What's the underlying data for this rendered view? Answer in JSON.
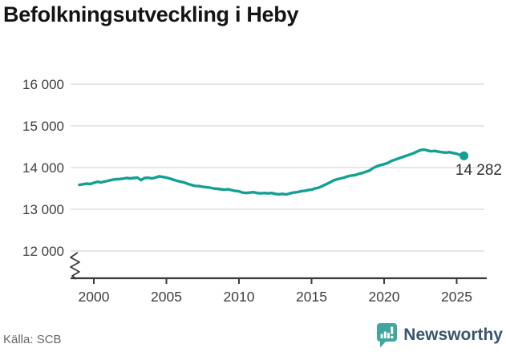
{
  "title": "Befolkningsutveckling i Heby",
  "source": "Källa: SCB",
  "branding": {
    "name": "Newsworthy",
    "icon": "newsworthy-chart-bubble-icon",
    "icon_color": "#3fa7a0",
    "text_color": "#3a556c"
  },
  "colors": {
    "line": "#12a092",
    "grid": "#e2e2e2",
    "axis": "#3a3a3a",
    "tick_label": "#3e3e3e",
    "annotation": "#2f2f2f"
  },
  "chart_data": {
    "type": "line",
    "title": "Befolkningsutveckling i Heby",
    "xlabel": "",
    "ylabel": "",
    "x_ticks": [
      2000,
      2005,
      2010,
      2015,
      2020,
      2025
    ],
    "y_ticks": [
      16000,
      15000,
      14000,
      13000,
      12000
    ],
    "y_tick_labels": [
      "16 000",
      "15 000",
      "14 000",
      "13 000",
      "12 000"
    ],
    "xlim": [
      1998.4,
      2027.2
    ],
    "ylim": [
      11600,
      16200
    ],
    "grid": "horizontal",
    "axis_break": true,
    "legend": "none",
    "end_label": "14 282",
    "end_value": 14282,
    "series": [
      {
        "name": "Befolkning",
        "x": [
          1999.0,
          1999.25,
          1999.5,
          1999.75,
          2000.0,
          2000.25,
          2000.5,
          2000.75,
          2001.0,
          2001.25,
          2001.5,
          2001.75,
          2002.0,
          2002.25,
          2002.5,
          2002.75,
          2003.0,
          2003.25,
          2003.5,
          2003.75,
          2004.0,
          2004.25,
          2004.5,
          2004.75,
          2005.0,
          2005.25,
          2005.5,
          2005.75,
          2006.0,
          2006.25,
          2006.5,
          2006.75,
          2007.0,
          2007.25,
          2007.5,
          2007.75,
          2008.0,
          2008.25,
          2008.5,
          2008.75,
          2009.0,
          2009.25,
          2009.5,
          2009.75,
          2010.0,
          2010.25,
          2010.5,
          2010.75,
          2011.0,
          2011.25,
          2011.5,
          2011.75,
          2012.0,
          2012.25,
          2012.5,
          2012.75,
          2013.0,
          2013.25,
          2013.5,
          2013.75,
          2014.0,
          2014.25,
          2014.5,
          2014.75,
          2015.0,
          2015.25,
          2015.5,
          2015.75,
          2016.0,
          2016.25,
          2016.5,
          2016.75,
          2017.0,
          2017.25,
          2017.5,
          2017.75,
          2018.0,
          2018.25,
          2018.5,
          2018.75,
          2019.0,
          2019.25,
          2019.5,
          2019.75,
          2020.0,
          2020.25,
          2020.5,
          2020.75,
          2021.0,
          2021.25,
          2021.5,
          2021.75,
          2022.0,
          2022.25,
          2022.5,
          2022.75,
          2023.0,
          2023.25,
          2023.5,
          2023.75,
          2024.0,
          2024.25,
          2024.5,
          2024.75,
          2025.0,
          2025.25,
          2025.5
        ],
        "y": [
          13585,
          13600,
          13615,
          13605,
          13635,
          13660,
          13645,
          13665,
          13685,
          13705,
          13720,
          13725,
          13735,
          13750,
          13740,
          13750,
          13760,
          13700,
          13750,
          13755,
          13740,
          13760,
          13790,
          13775,
          13760,
          13735,
          13705,
          13680,
          13660,
          13640,
          13605,
          13580,
          13560,
          13555,
          13540,
          13530,
          13520,
          13500,
          13490,
          13480,
          13470,
          13480,
          13460,
          13440,
          13430,
          13400,
          13390,
          13400,
          13410,
          13390,
          13380,
          13390,
          13380,
          13390,
          13370,
          13360,
          13370,
          13355,
          13380,
          13400,
          13410,
          13430,
          13440,
          13460,
          13470,
          13500,
          13520,
          13560,
          13600,
          13640,
          13690,
          13720,
          13740,
          13760,
          13790,
          13810,
          13820,
          13850,
          13870,
          13900,
          13930,
          13990,
          14030,
          14060,
          14080,
          14110,
          14160,
          14190,
          14220,
          14250,
          14280,
          14310,
          14340,
          14380,
          14420,
          14430,
          14410,
          14390,
          14400,
          14380,
          14370,
          14360,
          14370,
          14350,
          14330,
          14300,
          14282
        ]
      }
    ]
  }
}
